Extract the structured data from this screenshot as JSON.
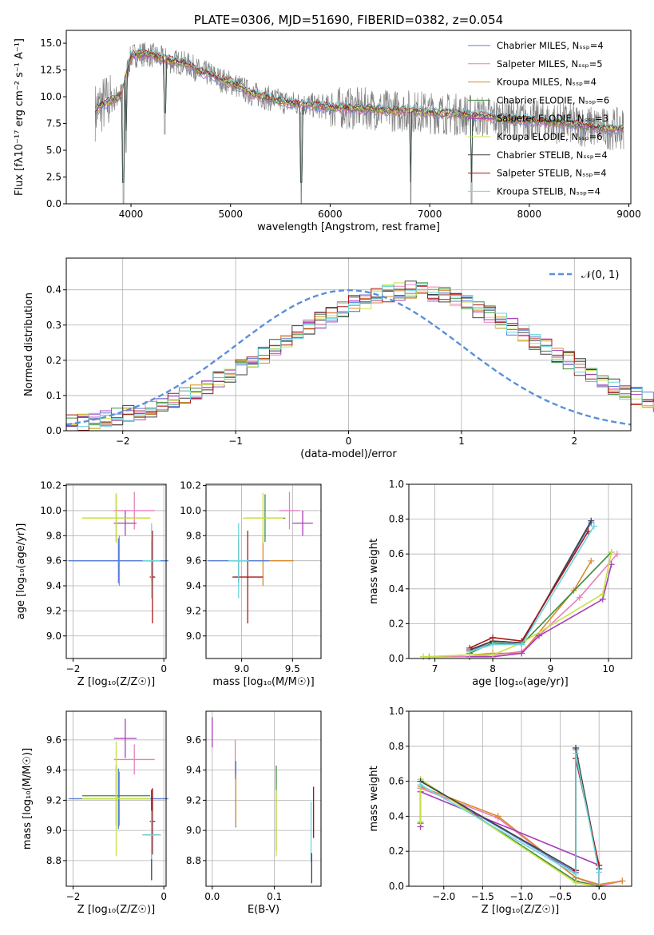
{
  "chart_data": [
    {
      "type": "line",
      "title": "PLATE=0306, MJD=51690, FIBERID=0382, z=0.054",
      "xlabel": "wavelength [Angstrom, rest frame]",
      "ylabel": "Flux [fλ10⁻¹⁷ erg cm⁻² s⁻¹ A⁻¹]",
      "xlim": [
        3350,
        9020
      ],
      "ylim": [
        0,
        16.2
      ],
      "xticks": [
        "4000",
        "5000",
        "6000",
        "7000",
        "8000",
        "9000"
      ],
      "yticks": [
        "0.0",
        "2.5",
        "5.0",
        "7.5",
        "10.0",
        "12.5",
        "15.0"
      ],
      "legend_position": "top-right",
      "series": [
        {
          "name": "Chabrier MILES, Nₛₛₚ=4",
          "color": "#5b7fd6"
        },
        {
          "name": "Salpeter MILES, Nₛₛₚ=5",
          "color": "#e87fbf"
        },
        {
          "name": "Kroupa MILES, Nₛₛₚ=4",
          "color": "#d98a2c"
        },
        {
          "name": "Chabrier ELODIE, Nₛₛₚ=6",
          "color": "#3d8c3d"
        },
        {
          "name": "Salpeter ELODIE, Nₛₛₚ=3",
          "color": "#a83fb8"
        },
        {
          "name": "Kroupa ELODIE, Nₛₛₚ=6",
          "color": "#c8e048"
        },
        {
          "name": "Chabrier STELIB, Nₛₛₚ=4",
          "color": "#404040"
        },
        {
          "name": "Salpeter STELIB, Nₛₛₚ=4",
          "color": "#a81818"
        },
        {
          "name": "Kroupa STELIB, Nₛₛₚ=4",
          "color": "#6fd6dc"
        }
      ],
      "data_color": "#808080",
      "data_points": [
        [
          3640,
          8.6
        ],
        [
          3700,
          9.2
        ],
        [
          3800,
          9.6
        ],
        [
          3900,
          10.2
        ],
        [
          4000,
          13.8
        ],
        [
          4100,
          14.0
        ],
        [
          4200,
          13.9
        ],
        [
          4300,
          13.6
        ],
        [
          4400,
          13.3
        ],
        [
          4500,
          13.2
        ],
        [
          4600,
          12.9
        ],
        [
          4700,
          12.3
        ],
        [
          4800,
          12.1
        ],
        [
          4900,
          11.6
        ],
        [
          5000,
          11.3
        ],
        [
          5100,
          10.9
        ],
        [
          5200,
          10.3
        ],
        [
          5300,
          10.1
        ],
        [
          5400,
          9.8
        ],
        [
          5500,
          9.6
        ],
        [
          5600,
          9.4
        ],
        [
          5700,
          9.3
        ],
        [
          5800,
          9.2
        ],
        [
          5900,
          9.1
        ],
        [
          6000,
          9.0
        ],
        [
          6200,
          8.9
        ],
        [
          6400,
          8.9
        ],
        [
          6600,
          8.7
        ],
        [
          6800,
          8.7
        ],
        [
          7000,
          8.5
        ],
        [
          7200,
          8.4
        ],
        [
          7400,
          8.3
        ],
        [
          7600,
          8.1
        ],
        [
          7800,
          7.9
        ],
        [
          8000,
          7.8
        ],
        [
          8200,
          7.6
        ],
        [
          8400,
          7.5
        ],
        [
          8600,
          7.2
        ],
        [
          8800,
          7.0
        ],
        [
          8950,
          7.0
        ]
      ],
      "dips": [
        [
          3925,
          0.0
        ],
        [
          3950,
          4.8
        ],
        [
          4340,
          6.5
        ],
        [
          5710,
          0.0
        ],
        [
          6810,
          0.0
        ],
        [
          7420,
          0.0
        ]
      ]
    },
    {
      "type": "line",
      "xlabel": "(data-model)/error",
      "ylabel": "Normed distribution",
      "xlim": [
        -2.5,
        2.5
      ],
      "ylim": [
        0,
        0.49
      ],
      "xticks": [
        "−2",
        "−1",
        "0",
        "1",
        "2"
      ],
      "yticks": [
        "0.0",
        "0.1",
        "0.2",
        "0.3",
        "0.4"
      ],
      "legend": "𝒩(0, 1)",
      "legend_position": "top-right",
      "bin_width": 0.1,
      "bins_left_edge": -2.5,
      "histogram_base": [
        0.022,
        0.025,
        0.03,
        0.035,
        0.04,
        0.048,
        0.055,
        0.062,
        0.072,
        0.085,
        0.098,
        0.112,
        0.128,
        0.145,
        0.162,
        0.18,
        0.198,
        0.215,
        0.235,
        0.255,
        0.275,
        0.295,
        0.315,
        0.33,
        0.345,
        0.36,
        0.37,
        0.38,
        0.39,
        0.395,
        0.4,
        0.398,
        0.39,
        0.383,
        0.375,
        0.36,
        0.345,
        0.33,
        0.31,
        0.295,
        0.275,
        0.255,
        0.237,
        0.218,
        0.2,
        0.18,
        0.162,
        0.145,
        0.128,
        0.113,
        0.098,
        0.085,
        0.073,
        0.062,
        0.052,
        0.044,
        0.038,
        0.033,
        0.029,
        0.027
      ],
      "curve": {
        "name": "𝒩(0, 1)",
        "mean": 0,
        "sigma": 1,
        "color": "#5b8fd9"
      }
    },
    {
      "type": "scatter",
      "xlabel": "Z [log₁₀(Z/Z☉)]",
      "ylabel": "age  [log₁₀(age/yr)]",
      "xlim": [
        -2.15,
        0.05
      ],
      "ylim": [
        8.82,
        10.21
      ],
      "xticks": [
        "−2",
        "0"
      ],
      "yticks": [
        "9.0",
        "9.2",
        "9.4",
        "9.6",
        "9.8",
        "10.0",
        "10.2"
      ],
      "points": [
        {
          "x": -0.65,
          "y": 10.0,
          "xerr": 0.45,
          "yerr": 0.15,
          "color": "#e87fbf"
        },
        {
          "x": -0.98,
          "y": 9.6,
          "xerr": 1.05,
          "yerr": 0.2,
          "color": "#d98a2c"
        },
        {
          "x": -1.0,
          "y": 9.6,
          "xerr": 1.1,
          "yerr": 0.18,
          "color": "#5b7fd6"
        },
        {
          "x": -1.05,
          "y": 9.94,
          "xerr": 0.75,
          "yerr": 0.19,
          "color": "#3d8c3d"
        },
        {
          "x": -0.85,
          "y": 9.9,
          "xerr": 0.25,
          "yerr": 0.1,
          "color": "#a83fb8"
        },
        {
          "x": -1.05,
          "y": 9.94,
          "xerr": 0.75,
          "yerr": 0.2,
          "color": "#c8e048"
        },
        {
          "x": -0.27,
          "y": 9.6,
          "xerr": 0.2,
          "yerr": 0.16,
          "color": "#404040"
        },
        {
          "x": -0.25,
          "y": 9.47,
          "xerr": 0.06,
          "yerr": 0.37,
          "color": "#a81818"
        },
        {
          "x": -0.27,
          "y": 9.6,
          "xerr": 0.2,
          "yerr": 0.3,
          "color": "#6fd6dc"
        }
      ]
    },
    {
      "type": "scatter",
      "xlabel": "mass [log₁₀(M/M☉)]",
      "xlim": [
        8.65,
        9.78
      ],
      "ylim": [
        8.82,
        10.21
      ],
      "xticks": [
        "9.0",
        "9.5"
      ],
      "yticks": [
        "9.0",
        "9.2",
        "9.4",
        "9.6",
        "9.8",
        "10.0",
        "10.2"
      ],
      "points": [
        {
          "x": 9.47,
          "y": 10.0,
          "xerr": 0.1,
          "yerr": 0.15,
          "color": "#e87fbf"
        },
        {
          "x": 9.21,
          "y": 9.6,
          "xerr": 0.3,
          "yerr": 0.2,
          "color": "#d98a2c"
        },
        {
          "x": 8.97,
          "y": 9.6,
          "xerr": 0.3,
          "yerr": 0.18,
          "color": "#5b7fd6"
        },
        {
          "x": 9.23,
          "y": 9.94,
          "xerr": 0.2,
          "yerr": 0.19,
          "color": "#3d8c3d"
        },
        {
          "x": 9.6,
          "y": 9.9,
          "xerr": 0.1,
          "yerr": 0.1,
          "color": "#a83fb8"
        },
        {
          "x": 9.21,
          "y": 9.94,
          "xerr": 0.2,
          "yerr": 0.2,
          "color": "#c8e048"
        },
        {
          "x": 8.97,
          "y": 9.6,
          "xerr": 0.1,
          "yerr": 0.16,
          "color": "#404040"
        },
        {
          "x": 9.06,
          "y": 9.47,
          "xerr": 0.15,
          "yerr": 0.37,
          "color": "#a81818"
        },
        {
          "x": 8.97,
          "y": 9.6,
          "xerr": 0.1,
          "yerr": 0.3,
          "color": "#6fd6dc"
        }
      ]
    },
    {
      "type": "line",
      "xlabel": "age  [log₁₀(age/yr)]",
      "ylabel": "mass weight",
      "xlim": [
        6.55,
        10.4
      ],
      "ylim": [
        0,
        1.0
      ],
      "xticks": [
        "7",
        "8",
        "9",
        "10"
      ],
      "yticks": [
        "0.0",
        "0.2",
        "0.4",
        "0.6",
        "0.8",
        "1.0"
      ],
      "series": [
        {
          "color": "#e87fbf",
          "x": [
            6.8,
            7.6,
            8.0,
            8.5,
            9.5,
            10.15
          ],
          "y": [
            0.01,
            0.01,
            0.02,
            0.04,
            0.35,
            0.6
          ]
        },
        {
          "color": "#d98a2c",
          "x": [
            6.9,
            7.6,
            8.0,
            8.5,
            9.4,
            9.7
          ],
          "y": [
            0.01,
            0.02,
            0.03,
            0.03,
            0.39,
            0.56
          ]
        },
        {
          "color": "#5b7fd6",
          "x": [
            7.6,
            8.0,
            8.5,
            9.7
          ],
          "y": [
            0.04,
            0.1,
            0.09,
            0.78
          ]
        },
        {
          "color": "#3d8c3d",
          "x": [
            7.6,
            8.0,
            8.5,
            10.05
          ],
          "y": [
            0.03,
            0.09,
            0.08,
            0.61
          ]
        },
        {
          "color": "#a83fb8",
          "x": [
            7.6,
            8.0,
            8.5,
            8.8,
            9.9,
            10.05
          ],
          "y": [
            0.01,
            0.01,
            0.03,
            0.13,
            0.34,
            0.54
          ]
        },
        {
          "color": "#c8e048",
          "x": [
            6.8,
            7.6,
            8.0,
            8.5,
            9.9,
            10.05
          ],
          "y": [
            0.01,
            0.02,
            0.02,
            0.09,
            0.37,
            0.61
          ]
        },
        {
          "color": "#404040",
          "x": [
            7.6,
            8.0,
            8.5,
            9.7
          ],
          "y": [
            0.05,
            0.1,
            0.09,
            0.79
          ]
        },
        {
          "color": "#a81818",
          "x": [
            7.6,
            8.0,
            8.5,
            9.65
          ],
          "y": [
            0.06,
            0.12,
            0.1,
            0.73
          ]
        },
        {
          "color": "#6fd6dc",
          "x": [
            7.6,
            8.0,
            8.5,
            9.75
          ],
          "y": [
            0.04,
            0.08,
            0.08,
            0.76
          ]
        }
      ]
    },
    {
      "type": "scatter",
      "xlabel": "Z [log₁₀(Z/Z☉)]",
      "ylabel": "mass [log₁₀(M/M☉)]",
      "xlim": [
        -2.15,
        0.05
      ],
      "ylim": [
        8.63,
        9.79
      ],
      "xticks": [
        "−2",
        "0"
      ],
      "yticks": [
        "8.8",
        "9.0",
        "9.2",
        "9.4",
        "9.6"
      ],
      "points": [
        {
          "x": -0.65,
          "y": 9.47,
          "xerr": 0.45,
          "yerr": 0.1,
          "color": "#e87fbf"
        },
        {
          "x": -0.98,
          "y": 9.21,
          "xerr": 1.05,
          "yerr": 0.18,
          "color": "#d98a2c"
        },
        {
          "x": -1.0,
          "y": 9.21,
          "xerr": 1.1,
          "yerr": 0.2,
          "color": "#5b7fd6"
        },
        {
          "x": -1.05,
          "y": 9.23,
          "xerr": 0.75,
          "yerr": 0.2,
          "color": "#3d8c3d"
        },
        {
          "x": -0.85,
          "y": 9.61,
          "xerr": 0.25,
          "yerr": 0.13,
          "color": "#a83fb8"
        },
        {
          "x": -1.05,
          "y": 9.21,
          "xerr": 0.75,
          "yerr": 0.38,
          "color": "#c8e048"
        },
        {
          "x": -0.27,
          "y": 8.97,
          "xerr": 0.2,
          "yerr": 0.3,
          "color": "#404040"
        },
        {
          "x": -0.25,
          "y": 9.06,
          "xerr": 0.06,
          "yerr": 0.22,
          "color": "#a81818"
        },
        {
          "x": -0.27,
          "y": 8.97,
          "xerr": 0.2,
          "yerr": 0.16,
          "color": "#6fd6dc"
        }
      ]
    },
    {
      "type": "scatter",
      "xlabel": "E(B-V)",
      "xlim": [
        -0.01,
        0.175
      ],
      "ylim": [
        8.63,
        9.79
      ],
      "xticks": [
        "0.0",
        "0.1"
      ],
      "yticks": [
        "8.8",
        "9.0",
        "9.2",
        "9.4",
        "9.6"
      ],
      "points": [
        {
          "x": 0.0,
          "y": 9.65,
          "xerr": 0,
          "yerr": 0.1,
          "color": "#a83fb8"
        },
        {
          "x": 0.037,
          "y": 9.47,
          "xerr": 0,
          "yerr": 0.13,
          "color": "#e87fbf"
        },
        {
          "x": 0.038,
          "y": 9.24,
          "xerr": 0,
          "yerr": 0.22,
          "color": "#5b7fd6"
        },
        {
          "x": 0.038,
          "y": 9.2,
          "xerr": 0,
          "yerr": 0.17,
          "color": "#d98a2c"
        },
        {
          "x": 0.103,
          "y": 9.15,
          "xerr": 0,
          "yerr": 0.28,
          "color": "#3d8c3d"
        },
        {
          "x": 0.103,
          "y": 9.05,
          "xerr": 0,
          "yerr": 0.22,
          "color": "#c8e048"
        },
        {
          "x": 0.159,
          "y": 8.99,
          "xerr": 0,
          "yerr": 0.2,
          "color": "#6fd6dc"
        },
        {
          "x": 0.16,
          "y": 8.75,
          "xerr": 0,
          "yerr": 0.1,
          "color": "#404040"
        },
        {
          "x": 0.163,
          "y": 9.12,
          "xerr": 0,
          "yerr": 0.17,
          "color": "#a81818"
        }
      ]
    },
    {
      "type": "line",
      "xlabel": "Z [log₁₀(Z/Z☉)]",
      "ylabel": "mass weight",
      "xlim": [
        -2.45,
        0.42
      ],
      "ylim": [
        0,
        1.0
      ],
      "xticks": [
        "−2.0",
        "−1.5",
        "−1.0",
        "−0.5",
        "0.0"
      ],
      "yticks": [
        "0.0",
        "0.2",
        "0.4",
        "0.6",
        "0.8",
        "1.0"
      ],
      "series": [
        {
          "color": "#e87fbf",
          "x": [
            -2.3,
            -1.3,
            -0.3,
            0.0,
            0.3
          ],
          "y": [
            0.56,
            0.39,
            0.05,
            0.0,
            0.03
          ]
        },
        {
          "color": "#d98a2c",
          "x": [
            -2.3,
            -1.3,
            -0.3,
            0.0,
            0.3
          ],
          "y": [
            0.57,
            0.4,
            0.05,
            0.01,
            0.03
          ]
        },
        {
          "color": "#5b7fd6",
          "x": [
            -2.3,
            -0.3,
            -0.3,
            0.0,
            0.0
          ],
          "y": [
            0.6,
            0.08,
            0.78,
            0.1,
            0.0
          ]
        },
        {
          "color": "#3d8c3d",
          "x": [
            -2.3,
            -2.3,
            -0.3,
            0.0
          ],
          "y": [
            0.36,
            0.61,
            0.03,
            0.0
          ]
        },
        {
          "color": "#a83fb8",
          "x": [
            -2.3,
            -2.3,
            0.0,
            0.0
          ],
          "y": [
            0.34,
            0.54,
            0.12,
            0.0
          ]
        },
        {
          "color": "#c8e048",
          "x": [
            -2.3,
            -2.3,
            -0.3,
            0.0
          ],
          "y": [
            0.37,
            0.61,
            0.02,
            0.0
          ]
        },
        {
          "color": "#404040",
          "x": [
            -2.3,
            -0.3,
            -0.3,
            0.0,
            0.0
          ],
          "y": [
            0.6,
            0.09,
            0.79,
            0.1,
            0.0
          ]
        },
        {
          "color": "#a81818",
          "x": [
            -0.3,
            -0.3,
            0.0,
            0.0
          ],
          "y": [
            0.09,
            0.73,
            0.12,
            0.0
          ]
        },
        {
          "color": "#6fd6dc",
          "x": [
            -2.3,
            -0.3,
            -0.3,
            0.0,
            0.0
          ],
          "y": [
            0.58,
            0.07,
            0.76,
            0.08,
            0.0
          ]
        }
      ]
    }
  ]
}
